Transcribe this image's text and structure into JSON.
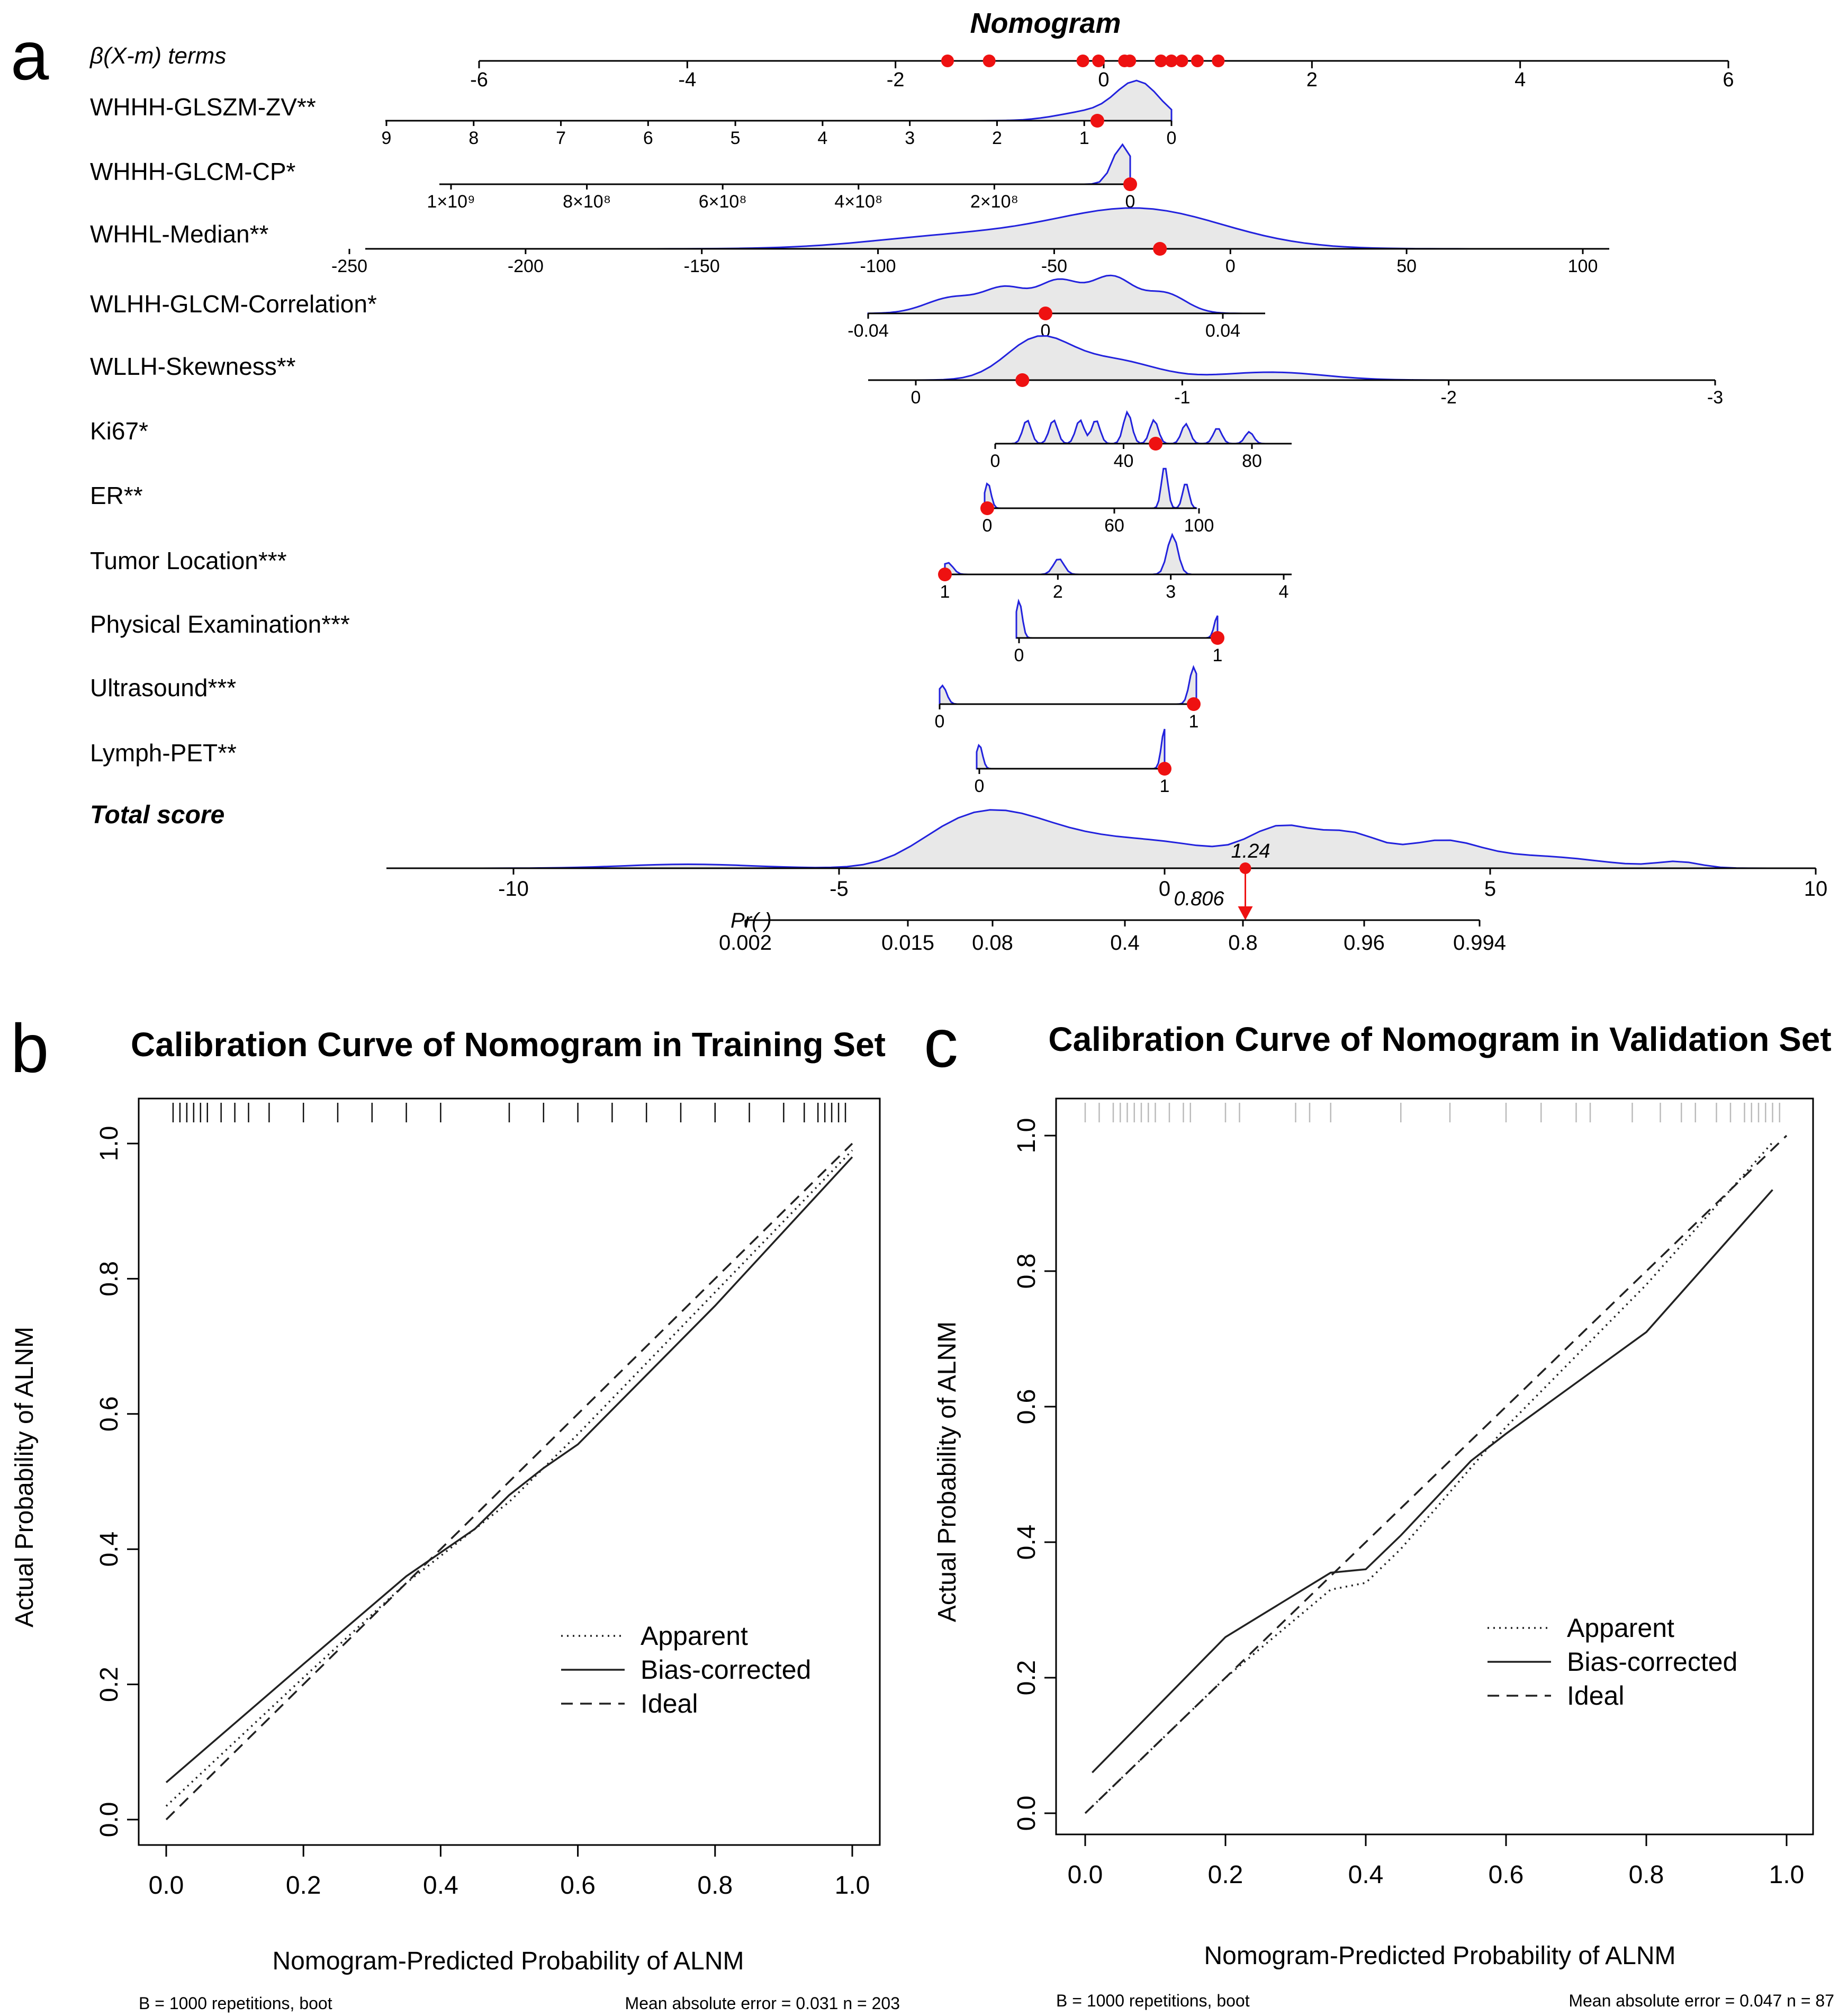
{
  "figure": {
    "panel_letters": [
      "a",
      "b",
      "c"
    ]
  },
  "nomogram": {
    "title": "Nomogram",
    "beta_label": "β(X-m) terms",
    "beta_ticks": [
      "-6",
      "-4",
      "-2",
      "0",
      "2",
      "4",
      "6"
    ],
    "beta_range": [
      -6,
      6
    ],
    "beta_points": [
      -1.5,
      -1.1,
      -0.2,
      -0.05,
      0.2,
      0.25,
      0.55,
      0.65,
      0.75,
      0.9,
      1.1
    ],
    "variables": [
      {
        "label": "WHHH-GLSZM-ZV**",
        "ticks": [
          "9",
          "8",
          "7",
          "6",
          "5",
          "4",
          "3",
          "2",
          "1",
          "0"
        ],
        "tick_values": [
          9,
          8,
          7,
          6,
          5,
          4,
          3,
          2,
          1,
          0
        ],
        "range": [
          9,
          0
        ],
        "point": 0.85
      },
      {
        "label": "WHHH-GLCM-CP*",
        "ticks": [
          "1×10⁹",
          "8×10⁸",
          "6×10⁸",
          "4×10⁸",
          "2×10⁸",
          "0"
        ],
        "tick_values": [
          1000000000,
          800000000,
          600000000,
          400000000,
          200000000,
          0
        ],
        "range": [
          1000000000,
          0
        ],
        "point": 0
      },
      {
        "label": "WHHL-Median**",
        "ticks": [
          "-250",
          "-200",
          "-150",
          "-100",
          "-50",
          "0",
          "50",
          "100"
        ],
        "tick_values": [
          -250,
          -200,
          -150,
          -100,
          -50,
          0,
          50,
          100
        ],
        "range": [
          -250,
          100
        ],
        "point": -20
      },
      {
        "label": "WLHH-GLCM-Correlation*",
        "ticks": [
          "-0.04",
          "0",
          "0.04"
        ],
        "tick_values": [
          -0.04,
          0,
          0.04
        ],
        "range": [
          -0.04,
          0.04
        ],
        "point": 0
      },
      {
        "label": "WLLH-Skewness**",
        "ticks": [
          "0",
          "-1",
          "-2",
          "-3"
        ],
        "tick_values": [
          0,
          -1,
          -2,
          -3
        ],
        "range": [
          0,
          -3
        ],
        "point": -0.4
      },
      {
        "label": "Ki67*",
        "ticks": [
          "0",
          "40",
          "80"
        ],
        "tick_values": [
          0,
          40,
          80
        ],
        "range": [
          0,
          80
        ],
        "point": 50
      },
      {
        "label": "ER**",
        "ticks": [
          "0",
          "60",
          "100"
        ],
        "tick_values": [
          0,
          60,
          100
        ],
        "range": [
          0,
          100
        ],
        "point": 0
      },
      {
        "label": "Tumor Location***",
        "ticks": [
          "1",
          "2",
          "3",
          "4"
        ],
        "tick_values": [
          1,
          2,
          3,
          4
        ],
        "range": [
          1,
          4
        ],
        "point": 1
      },
      {
        "label": "Physical Examination***",
        "ticks": [
          "0",
          "1"
        ],
        "tick_values": [
          0,
          1
        ],
        "range": [
          0,
          1
        ],
        "point": 1
      },
      {
        "label": "Ultrasound***",
        "ticks": [
          "0",
          "1"
        ],
        "tick_values": [
          0,
          1
        ],
        "range": [
          0,
          1
        ],
        "point": 1
      },
      {
        "label": "Lymph-PET**",
        "ticks": [
          "0",
          "1"
        ],
        "tick_values": [
          0,
          1
        ],
        "range": [
          0,
          1
        ],
        "point": 1
      }
    ],
    "total": {
      "label": "Total score",
      "ticks": [
        "-10",
        "-5",
        "0",
        "5",
        "10"
      ],
      "tick_values": [
        -10,
        -5,
        0,
        5,
        10
      ],
      "range": [
        -10,
        10
      ],
      "value_text": "1.24",
      "value": 1.24
    },
    "probability": {
      "label": "Pr( )",
      "ticks": [
        "0.002",
        "0.015",
        "0.08",
        "0.4",
        "0.8",
        "0.96",
        "0.994"
      ],
      "value_text": "0.806"
    },
    "colors": {
      "density": "#2222dd",
      "density_fill": "#e8e8e8",
      "point": "#ee1111",
      "annotation": "#ee1111"
    }
  },
  "calibration_training": {
    "title": "Calibration Curve of Nomogram in Training Set",
    "xlabel": "Nomogram-Predicted Probability of ALNM",
    "ylabel": "Actual Probability of ALNM",
    "footer_left": "B = 1000 repetitions, boot",
    "footer_right": "Mean absolute error = 0.031 n = 203",
    "legend": [
      "Apparent",
      "Bias-corrected",
      "Ideal"
    ]
  },
  "calibration_validation": {
    "title": "Calibration Curve of Nomogram in Validation Set",
    "xlabel": "Nomogram-Predicted Probability of ALNM",
    "ylabel": "Actual Probability of ALNM",
    "footer_left": "B = 1000 repetitions, boot",
    "footer_right": "Mean absolute error = 0.047 n = 87",
    "legend": [
      "Apparent",
      "Bias-corrected",
      "Ideal"
    ]
  },
  "chart_data": [
    {
      "type": "line",
      "title": "Calibration Curve of Nomogram in Training Set",
      "xlabel": "Nomogram-Predicted Probability of ALNM",
      "ylabel": "Actual Probability of ALNM",
      "xlim": [
        0,
        1
      ],
      "ylim": [
        0,
        1
      ],
      "x_ticks": [
        "0.0",
        "0.2",
        "0.4",
        "0.6",
        "0.8",
        "1.0"
      ],
      "y_ticks": [
        "0.0",
        "0.2",
        "0.4",
        "0.6",
        "0.8",
        "1.0"
      ],
      "grid": false,
      "legend_position": "bottom-right",
      "series": [
        {
          "name": "Apparent",
          "style": "dotted",
          "x": [
            0.0,
            0.2,
            0.35,
            0.5,
            0.6,
            0.8,
            1.0
          ],
          "y": [
            0.02,
            0.21,
            0.35,
            0.47,
            0.57,
            0.78,
            0.99
          ]
        },
        {
          "name": "Bias-corrected",
          "style": "solid",
          "x": [
            0.0,
            0.2,
            0.35,
            0.45,
            0.5,
            0.55,
            0.6,
            0.8,
            1.0
          ],
          "y": [
            0.055,
            0.23,
            0.36,
            0.43,
            0.48,
            0.52,
            0.555,
            0.76,
            0.98
          ]
        },
        {
          "name": "Ideal",
          "style": "dashed",
          "x": [
            0.0,
            1.0
          ],
          "y": [
            0.0,
            1.0
          ]
        }
      ],
      "rug_x": [
        0.01,
        0.02,
        0.03,
        0.04,
        0.05,
        0.06,
        0.08,
        0.1,
        0.12,
        0.15,
        0.2,
        0.25,
        0.3,
        0.35,
        0.4,
        0.5,
        0.55,
        0.6,
        0.65,
        0.7,
        0.75,
        0.8,
        0.85,
        0.9,
        0.93,
        0.95,
        0.96,
        0.97,
        0.98,
        0.99
      ]
    },
    {
      "type": "line",
      "title": "Calibration Curve of Nomogram in Validation Set",
      "xlabel": "Nomogram-Predicted Probability of ALNM",
      "ylabel": "Actual Probability of ALNM",
      "xlim": [
        0,
        1
      ],
      "ylim": [
        0,
        1
      ],
      "x_ticks": [
        "0.0",
        "0.2",
        "0.4",
        "0.6",
        "0.8",
        "1.0"
      ],
      "y_ticks": [
        "0.0",
        "0.2",
        "0.4",
        "0.6",
        "0.8",
        "1.0"
      ],
      "grid": false,
      "legend_position": "bottom-right",
      "series": [
        {
          "name": "Apparent",
          "style": "dotted",
          "x": [
            0.01,
            0.2,
            0.35,
            0.4,
            0.45,
            0.6,
            0.8,
            0.98
          ],
          "y": [
            0.01,
            0.2,
            0.33,
            0.34,
            0.39,
            0.57,
            0.78,
            0.99
          ]
        },
        {
          "name": "Bias-corrected",
          "style": "solid",
          "x": [
            0.01,
            0.2,
            0.35,
            0.4,
            0.45,
            0.55,
            0.6,
            0.8,
            0.98
          ],
          "y": [
            0.06,
            0.26,
            0.355,
            0.36,
            0.41,
            0.52,
            0.56,
            0.71,
            0.92
          ]
        },
        {
          "name": "Ideal",
          "style": "dashed",
          "x": [
            0.0,
            1.0
          ],
          "y": [
            0.0,
            1.0
          ]
        }
      ],
      "rug_x": [
        0.0,
        0.02,
        0.04,
        0.05,
        0.06,
        0.07,
        0.08,
        0.09,
        0.1,
        0.12,
        0.14,
        0.15,
        0.2,
        0.22,
        0.3,
        0.32,
        0.35,
        0.45,
        0.52,
        0.6,
        0.65,
        0.7,
        0.72,
        0.78,
        0.82,
        0.85,
        0.87,
        0.9,
        0.92,
        0.94,
        0.95,
        0.96,
        0.97,
        0.98,
        0.99
      ]
    }
  ]
}
